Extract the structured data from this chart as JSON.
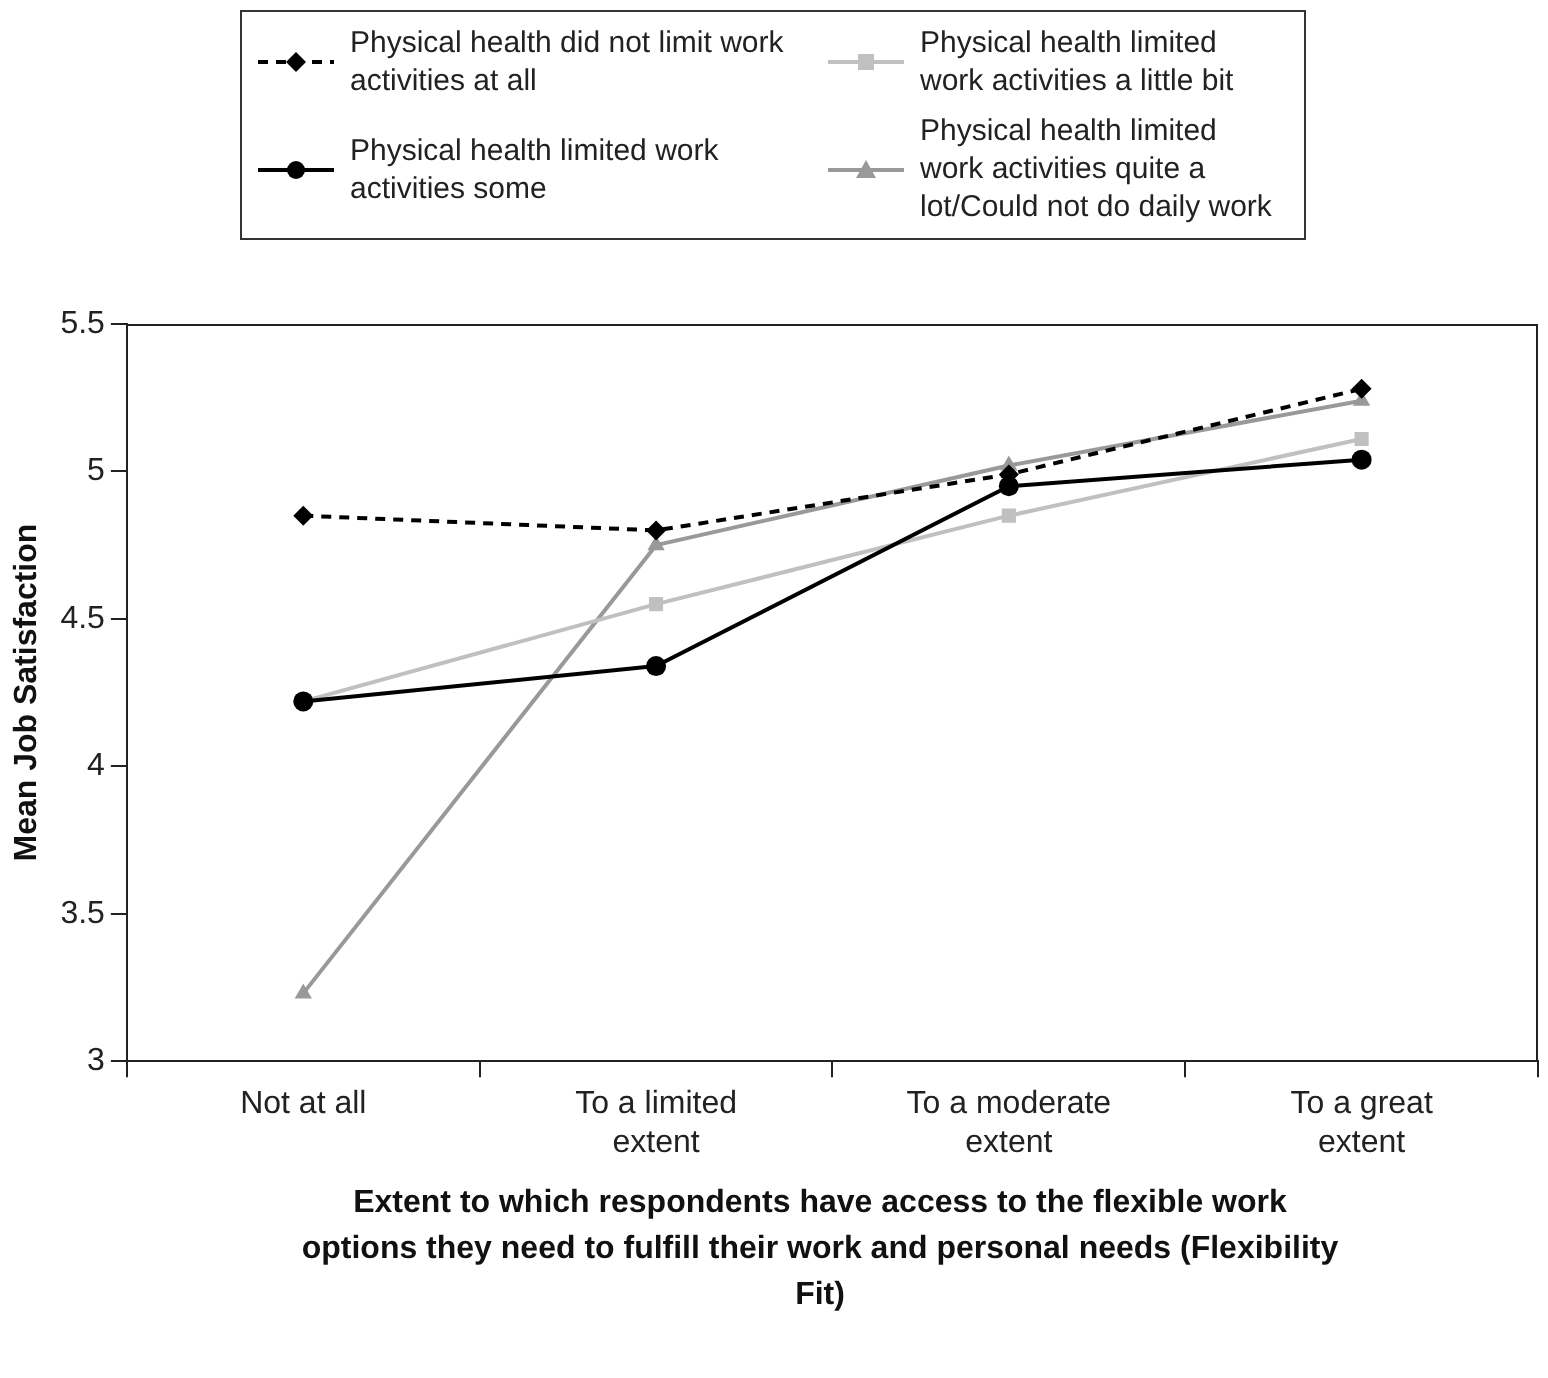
{
  "chart_data": {
    "type": "line",
    "xlabel": "Extent to which respondents have access to the flexible work options they need to fulfill their work and personal needs (Flexibility Fit)",
    "ylabel": "Mean Job Satisfaction",
    "categories": [
      "Not at all",
      "To a limited extent",
      "To a moderate extent",
      "To a great extent"
    ],
    "ylim": [
      3,
      5.5
    ],
    "yticks": [
      3,
      3.5,
      4,
      4.5,
      5,
      5.5
    ],
    "grid": false,
    "legend": "top",
    "series": [
      {
        "name": "Physical health did not limit work activities at all",
        "color": "#000000",
        "marker": "diamond",
        "line_style": "dashed",
        "values": [
          4.85,
          4.8,
          4.99,
          5.28
        ]
      },
      {
        "name": "Physical health limited work activities some",
        "color": "#000000",
        "marker": "circle",
        "line_style": "solid",
        "values": [
          4.22,
          4.34,
          4.95,
          5.04
        ]
      },
      {
        "name": "Physical health limited work activities a little bit",
        "color": "#c0c0c0",
        "marker": "square",
        "line_style": "solid",
        "values": [
          4.22,
          4.55,
          4.85,
          5.11
        ]
      },
      {
        "name": "Physical health limited work activities quite a lot/Could not do daily work",
        "color": "#999999",
        "marker": "triangle",
        "line_style": "solid",
        "values": [
          3.23,
          4.75,
          5.02,
          5.24
        ]
      }
    ]
  }
}
